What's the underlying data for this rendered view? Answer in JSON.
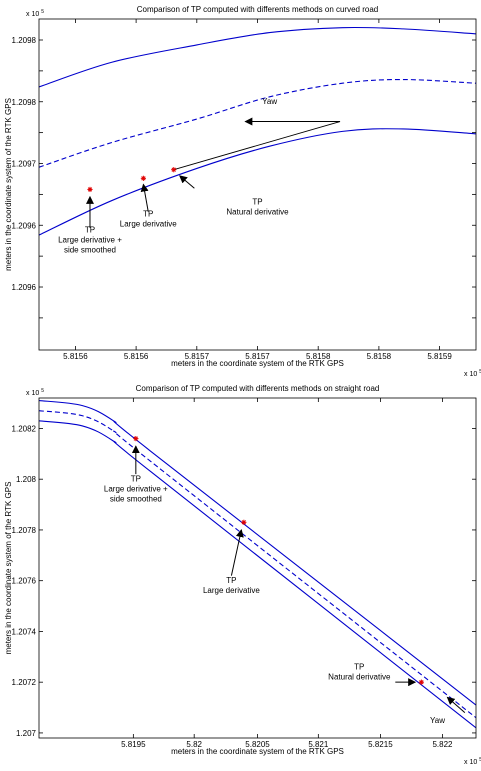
{
  "chart_data": [
    {
      "type": "line",
      "title": "Comparison of TP computed with differents methods on curved road",
      "xlabel": "meters in the coordinate system of the RTK GPS",
      "ylabel": "meters in the coordinate system of the RTK GPS",
      "x_exponent": "x 10",
      "y_exponent": "x 10",
      "exponent_power": "5",
      "xlim": [
        5.81557,
        5.81593
      ],
      "ylim": [
        1.209549,
        1.209817
      ],
      "xticks": [
        5.8156,
        5.81565,
        5.8157,
        5.81575,
        5.8158,
        5.81585,
        5.8159
      ],
      "xtick_labels": [
        "5.8156",
        "5.8156",
        "5.8157",
        "5.8157",
        "5.8158",
        "5.8158",
        "5.8159"
      ],
      "yticks": [
        1.209575,
        1.2096,
        1.209625,
        1.20965,
        1.209675,
        1.2097,
        1.209725,
        1.20975,
        1.209775,
        1.2098
      ],
      "ytick_labels": [
        "",
        "1.2096",
        "",
        "1.2096",
        "",
        "1.2097",
        "",
        "1.2098",
        "",
        "1.2098"
      ],
      "grid": false,
      "series": [
        {
          "style": "solid",
          "color": "#0000cc",
          "x": [
            5.81557,
            5.81563,
            5.8157,
            5.81576,
            5.81582,
            5.81587,
            5.81593
          ],
          "y": [
            1.209762,
            1.209782,
            1.209796,
            1.209806,
            1.20981,
            1.209809,
            1.209805
          ]
        },
        {
          "style": "dashed",
          "color": "#0000cc",
          "x": [
            5.81557,
            5.81563,
            5.8157,
            5.81576,
            5.81582,
            5.81587,
            5.81593
          ],
          "y": [
            1.209697,
            1.209717,
            1.209736,
            1.209754,
            1.209765,
            1.209768,
            1.209765
          ]
        },
        {
          "style": "solid",
          "color": "#0000cc",
          "x": [
            5.81557,
            5.81563,
            5.8157,
            5.81576,
            5.81582,
            5.81587,
            5.81593
          ],
          "y": [
            1.209642,
            1.20967,
            1.209696,
            1.209714,
            1.209726,
            1.209728,
            1.209724
          ]
        }
      ],
      "points": [
        {
          "name": "TP Large derivative + side smoothed",
          "x": 5.815612,
          "y": 1.209679
        },
        {
          "name": "TP Large derivative",
          "x": 5.815656,
          "y": 1.209688
        },
        {
          "name": "TP Natural derivative",
          "x": 5.815681,
          "y": 1.209695
        }
      ],
      "annotations": [
        {
          "lines": [
            "TP",
            "Large derivative +",
            "side smoothed"
          ],
          "text_x": 5.815612,
          "text_y": 1.209644,
          "arrow_from": [
            5.815612,
            1.209648
          ],
          "arrow_to": [
            5.815612,
            1.209673
          ]
        },
        {
          "lines": [
            "TP",
            "Large derivative"
          ],
          "text_x": 5.81566,
          "text_y": 1.209657,
          "arrow_from": [
            5.81566,
            1.209661
          ],
          "arrow_to": [
            5.815656,
            1.209683
          ]
        },
        {
          "lines": [
            "TP",
            "Natural derivative"
          ],
          "text_x": 5.81575,
          "text_y": 1.209667,
          "arrow_from": [
            5.815698,
            1.20968
          ],
          "arrow_to": [
            5.815686,
            1.20969
          ]
        },
        {
          "lines": [
            "Yaw"
          ],
          "text_x": 5.81576,
          "text_y": 1.209748,
          "arrow_from": [
            5.815818,
            1.209734
          ],
          "arrow_to": [
            5.81574,
            1.209734
          ]
        }
      ],
      "extra_lines": [
        {
          "from": [
            5.815681,
            1.209695
          ],
          "to": [
            5.815818,
            1.209734
          ]
        }
      ]
    },
    {
      "type": "line",
      "title": "Comparison of TP computed with differents methods on straight road",
      "xlabel": "meters in the coordinate system of the RTK GPS",
      "ylabel": "meters in the coordinate system of the RTK GPS",
      "x_exponent": "x 10",
      "y_exponent": "x 10",
      "exponent_power": "5",
      "xlim": [
        5.81875,
        5.82227
      ],
      "ylim": [
        1.20698,
        1.20832
      ],
      "xticks": [
        5.81951,
        5.82,
        5.82051,
        5.821,
        5.8215,
        5.822
      ],
      "xtick_labels": [
        "5.8195",
        "5.82",
        "5.8205",
        "5.821",
        "5.8215",
        "5.822"
      ],
      "yticks": [
        1.207,
        1.2072,
        1.2074,
        1.2076,
        1.2078,
        1.208,
        1.2082
      ],
      "ytick_labels": [
        "1.207",
        "1.2072",
        "1.2074",
        "1.2076",
        "1.2078",
        "1.208",
        "1.2082"
      ],
      "grid": false,
      "series": [
        {
          "style": "solid",
          "color": "#0000cc",
          "x": [
            5.81875,
            5.8191,
            5.81935,
            5.81965,
            5.82227
          ],
          "y": [
            1.20831,
            1.20829,
            1.20823,
            1.20811,
            1.20711
          ]
        },
        {
          "style": "dashed",
          "color": "#0000cc",
          "x": [
            5.81875,
            5.8191,
            5.81935,
            5.81965,
            5.82227
          ],
          "y": [
            1.20827,
            1.20825,
            1.20819,
            1.20807,
            1.20706
          ]
        },
        {
          "style": "solid",
          "color": "#0000cc",
          "x": [
            5.81875,
            5.8191,
            5.81935,
            5.81965,
            5.82227
          ],
          "y": [
            1.20823,
            1.20821,
            1.20815,
            1.20803,
            1.20702
          ]
        }
      ],
      "points": [
        {
          "name": "TP Large derivative + side smoothed",
          "x": 5.81953,
          "y": 1.20816
        },
        {
          "name": "TP Large derivative",
          "x": 5.8204,
          "y": 1.20783
        },
        {
          "name": "TP Natural derivative",
          "x": 5.82183,
          "y": 1.2072
        }
      ],
      "annotations": [
        {
          "lines": [
            "TP",
            "Large derivative +",
            "side smoothed"
          ],
          "text_x": 5.81953,
          "text_y": 1.20799,
          "arrow_from": [
            5.81953,
            1.20802
          ],
          "arrow_to": [
            5.81953,
            1.20813
          ]
        },
        {
          "lines": [
            "TP",
            "Large derivative"
          ],
          "text_x": 5.8203,
          "text_y": 1.20759,
          "arrow_from": [
            5.8203,
            1.20762
          ],
          "arrow_to": [
            5.82038,
            1.2078
          ]
        },
        {
          "lines": [
            "TP",
            "Natural derivative"
          ],
          "text_x": 5.82133,
          "text_y": 1.20725,
          "arrow_from": [
            5.82162,
            1.2072
          ],
          "arrow_to": [
            5.82178,
            1.2072
          ]
        },
        {
          "lines": [
            "Yaw"
          ],
          "text_x": 5.82196,
          "text_y": 1.20704,
          "arrow_from": [
            5.82218,
            1.20708
          ],
          "arrow_to": [
            5.82204,
            1.20714
          ]
        }
      ],
      "extra_lines": []
    }
  ]
}
